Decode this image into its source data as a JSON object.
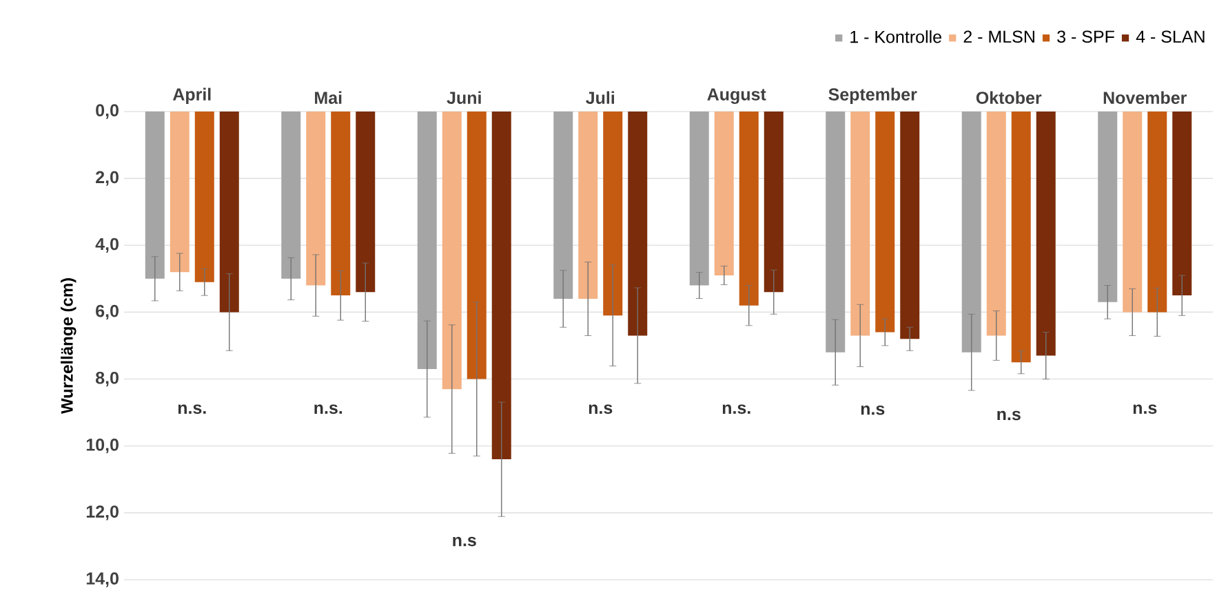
{
  "chart_data": {
    "type": "bar",
    "ylabel": "Wurzellänge (cm)",
    "categories": [
      "April",
      "Mai",
      "Juni",
      "Juli",
      "August",
      "September",
      "Oktober",
      "November"
    ],
    "series": [
      {
        "name": "1 - Kontrolle",
        "color": "#a5a5a5",
        "values": [
          5.0,
          5.0,
          7.7,
          5.6,
          5.2,
          7.2,
          7.2,
          5.7
        ],
        "errors": [
          0.66,
          0.63,
          1.44,
          0.85,
          0.39,
          0.98,
          1.14,
          0.5
        ]
      },
      {
        "name": "2 - MLSN",
        "color": "#f4b183",
        "values": [
          4.8,
          5.2,
          8.3,
          5.6,
          4.9,
          6.7,
          6.7,
          6.0
        ],
        "errors": [
          0.56,
          0.92,
          1.92,
          1.1,
          0.28,
          0.93,
          0.74,
          0.7
        ]
      },
      {
        "name": "3 - SPF",
        "color": "#c55a11",
        "values": [
          5.1,
          5.5,
          8.0,
          6.1,
          5.8,
          6.6,
          7.5,
          6.0
        ],
        "errors": [
          0.4,
          0.74,
          2.3,
          1.51,
          0.6,
          0.4,
          0.34,
          0.72
        ]
      },
      {
        "name": "4 - SLAN",
        "color": "#7b2c0a",
        "values": [
          6.0,
          5.4,
          10.4,
          6.7,
          5.4,
          6.8,
          7.3,
          5.5
        ],
        "errors": [
          1.15,
          0.87,
          1.71,
          1.43,
          0.66,
          0.35,
          0.7,
          0.6
        ]
      }
    ],
    "ylim": [
      14,
      0
    ],
    "yticks": [
      {
        "value": 0,
        "label": "0,0"
      },
      {
        "value": 2,
        "label": "2,0"
      },
      {
        "value": 4,
        "label": "4,0"
      },
      {
        "value": 6,
        "label": "6,0"
      },
      {
        "value": 8,
        "label": "8,0"
      },
      {
        "value": 10,
        "label": "10,0"
      },
      {
        "value": 12,
        "label": "12,0"
      },
      {
        "value": 14,
        "label": "14,0"
      }
    ],
    "grid": "y",
    "legend": "top right",
    "annotations": [
      "n.s.",
      "n.s.",
      "n.s",
      "n.s",
      "n.s.",
      "n.s",
      "n.s",
      "n.s"
    ]
  }
}
